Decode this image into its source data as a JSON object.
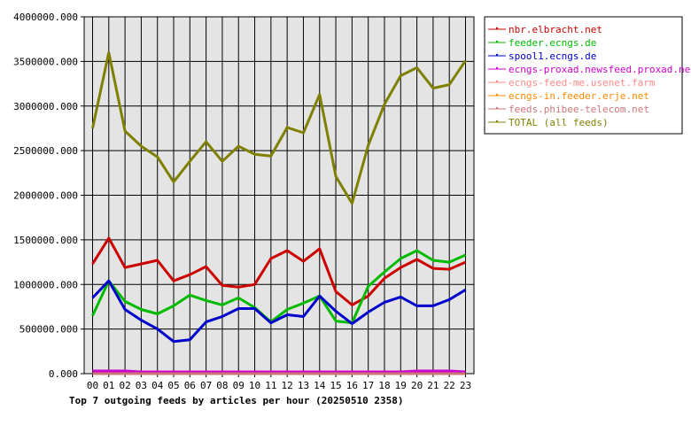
{
  "chart_data": {
    "type": "line",
    "title": "Top 7 outgoing feeds by articles per hour (20250510 2358)",
    "xlabel": "",
    "ylabel": "",
    "ylim": [
      0,
      4000000
    ],
    "yticks": [
      "0.000",
      "500000.000",
      "1000000.000",
      "1500000.000",
      "2000000.000",
      "2500000.000",
      "3000000.000",
      "3500000.000",
      "4000000.000"
    ],
    "ytick_values": [
      0,
      500000,
      1000000,
      1500000,
      2000000,
      2500000,
      3000000,
      3500000,
      4000000
    ],
    "categories": [
      "00",
      "01",
      "02",
      "03",
      "04",
      "05",
      "06",
      "07",
      "08",
      "09",
      "10",
      "11",
      "12",
      "13",
      "14",
      "15",
      "16",
      "17",
      "18",
      "19",
      "20",
      "21",
      "22",
      "23"
    ],
    "grid": true,
    "legend_position": "right",
    "series": [
      {
        "name": "nbr.elbracht.net",
        "color": "#cc0000",
        "values": [
          1230000,
          1520000,
          1190000,
          1230000,
          1270000,
          1040000,
          1110000,
          1200000,
          990000,
          970000,
          1000000,
          1290000,
          1380000,
          1260000,
          1400000,
          920000,
          770000,
          870000,
          1070000,
          1190000,
          1280000,
          1180000,
          1170000,
          1250000
        ]
      },
      {
        "name": "feeder.ecngs.de",
        "color": "#00bb00",
        "values": [
          650000,
          1040000,
          810000,
          720000,
          670000,
          760000,
          880000,
          820000,
          770000,
          850000,
          740000,
          580000,
          720000,
          790000,
          870000,
          590000,
          570000,
          980000,
          1140000,
          1290000,
          1380000,
          1270000,
          1250000,
          1330000
        ]
      },
      {
        "name": "spool1.ecngs.de",
        "color": "#0000cc",
        "values": [
          850000,
          1040000,
          720000,
          600000,
          500000,
          360000,
          380000,
          580000,
          640000,
          730000,
          730000,
          570000,
          660000,
          640000,
          870000,
          700000,
          560000,
          690000,
          800000,
          860000,
          760000,
          760000,
          830000,
          940000
        ]
      },
      {
        "name": "ecngs-proxad.newsfeed.proxad.net",
        "color": "#cc00cc",
        "values": [
          30000,
          30000,
          30000,
          20000,
          20000,
          20000,
          20000,
          20000,
          20000,
          20000,
          20000,
          20000,
          20000,
          20000,
          20000,
          20000,
          20000,
          20000,
          20000,
          20000,
          30000,
          30000,
          30000,
          20000
        ]
      },
      {
        "name": "ecngs-feed-me.usenet.farm",
        "color": "#ff8888",
        "values": [
          0,
          0,
          0,
          0,
          0,
          0,
          0,
          0,
          0,
          0,
          0,
          0,
          0,
          0,
          0,
          0,
          0,
          0,
          0,
          0,
          0,
          0,
          0,
          0
        ]
      },
      {
        "name": "ecngs-in.feeder.erje.net",
        "color": "#ff8800",
        "values": [
          0,
          0,
          0,
          0,
          0,
          0,
          0,
          0,
          0,
          0,
          0,
          0,
          0,
          0,
          0,
          0,
          0,
          0,
          0,
          0,
          0,
          0,
          0,
          0
        ]
      },
      {
        "name": "feeds.phibee-telecom.net",
        "color": "#cc7777",
        "values": [
          0,
          0,
          0,
          0,
          0,
          0,
          0,
          0,
          0,
          0,
          0,
          0,
          0,
          0,
          0,
          0,
          0,
          0,
          0,
          0,
          0,
          0,
          0,
          0
        ]
      },
      {
        "name": "TOTAL (all feeds)",
        "color": "#808000",
        "values": [
          2750000,
          3600000,
          2720000,
          2550000,
          2430000,
          2150000,
          2380000,
          2600000,
          2380000,
          2550000,
          2460000,
          2440000,
          2760000,
          2700000,
          3130000,
          2210000,
          1910000,
          2560000,
          3020000,
          3340000,
          3430000,
          3200000,
          3240000,
          3510000
        ]
      }
    ]
  }
}
